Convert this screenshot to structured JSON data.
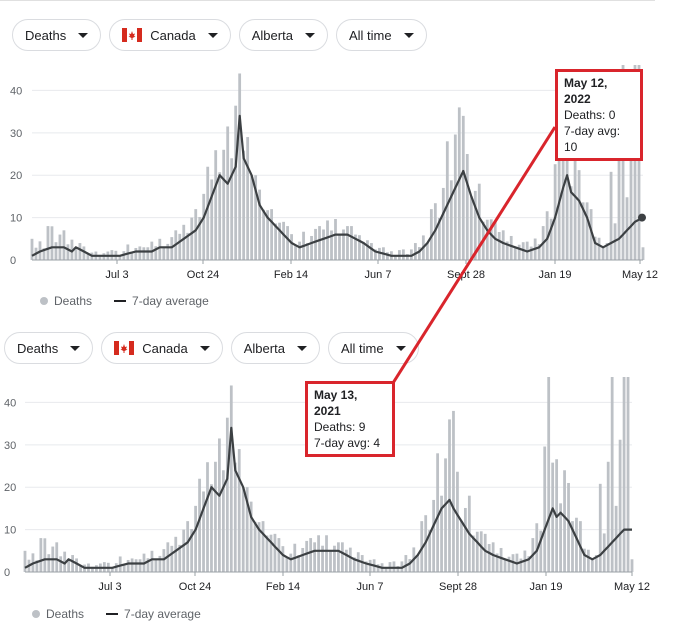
{
  "filters": {
    "metric": "Deaths",
    "country": "Canada",
    "region": "Alberta",
    "range": "All time"
  },
  "legend": {
    "bars": "Deaths",
    "line": "7-day average"
  },
  "tooltips": [
    {
      "title": "May 12, 2022",
      "deaths": "Deaths: 0",
      "avg": "7-day avg: 10"
    },
    {
      "title": "May 13, 2021",
      "deaths": "Deaths: 9",
      "avg": "7-day avg: 4"
    }
  ],
  "colors": {
    "bar": "#bdc1c6",
    "line": "#3c4043",
    "accent": "#d9252c",
    "grid": "#e8eaed"
  },
  "chart_data": [
    {
      "type": "bar",
      "series": [
        {
          "name": "Deaths",
          "type": "bar"
        },
        {
          "name": "7-day average",
          "type": "line"
        }
      ],
      "x_ticks": [
        "Jul 3",
        "Oct 24",
        "Feb 14",
        "Jun 7",
        "Sept 28",
        "Jan 19",
        "May 12"
      ],
      "y_ticks": [
        0,
        10,
        20,
        30,
        40
      ],
      "ylim": [
        0,
        46
      ],
      "avg": [
        [
          0,
          1
        ],
        [
          2,
          2
        ],
        [
          5,
          3
        ],
        [
          8,
          3
        ],
        [
          10,
          2
        ],
        [
          11,
          3
        ],
        [
          13,
          2
        ],
        [
          15,
          1
        ],
        [
          18,
          1
        ],
        [
          22,
          1
        ],
        [
          26,
          2
        ],
        [
          30,
          2
        ],
        [
          32,
          3
        ],
        [
          35,
          3
        ],
        [
          38,
          5
        ],
        [
          41,
          7
        ],
        [
          43,
          10
        ],
        [
          45,
          15
        ],
        [
          47,
          20
        ],
        [
          49,
          18
        ],
        [
          51,
          22
        ],
        [
          52,
          34
        ],
        [
          53,
          24
        ],
        [
          55,
          20
        ],
        [
          57,
          13
        ],
        [
          59,
          10
        ],
        [
          61,
          8
        ],
        [
          63,
          6
        ],
        [
          65,
          4
        ],
        [
          67,
          3
        ],
        [
          70,
          4
        ],
        [
          73,
          5
        ],
        [
          76,
          6
        ],
        [
          79,
          6
        ],
        [
          81,
          5
        ],
        [
          83,
          4
        ],
        [
          86,
          2
        ],
        [
          90,
          1
        ],
        [
          93,
          1
        ],
        [
          95,
          1
        ],
        [
          97,
          2
        ],
        [
          99,
          4
        ],
        [
          101,
          7
        ],
        [
          103,
          11
        ],
        [
          105,
          15
        ],
        [
          107,
          19
        ],
        [
          108,
          21
        ],
        [
          110,
          15
        ],
        [
          112,
          10
        ],
        [
          114,
          7
        ],
        [
          116,
          5
        ],
        [
          118,
          4
        ],
        [
          121,
          3
        ],
        [
          124,
          2
        ],
        [
          127,
          3
        ],
        [
          129,
          5
        ],
        [
          131,
          10
        ],
        [
          133,
          17
        ],
        [
          134,
          20
        ],
        [
          135,
          16
        ],
        [
          137,
          14
        ],
        [
          139,
          10
        ],
        [
          141,
          4
        ],
        [
          143,
          3
        ],
        [
          145,
          4
        ],
        [
          147,
          5
        ],
        [
          149,
          7
        ],
        [
          151,
          9
        ],
        [
          153,
          10
        ]
      ],
      "peaks": [
        [
          2,
          5
        ],
        [
          4,
          8
        ],
        [
          6,
          9
        ],
        [
          8,
          7
        ],
        [
          10,
          6
        ],
        [
          12,
          4
        ],
        [
          14,
          3
        ],
        [
          16,
          2
        ],
        [
          19,
          2
        ],
        [
          22,
          3
        ],
        [
          25,
          4
        ],
        [
          28,
          3
        ],
        [
          31,
          5
        ],
        [
          34,
          5
        ],
        [
          37,
          8
        ],
        [
          40,
          10
        ],
        [
          42,
          14
        ],
        [
          44,
          22
        ],
        [
          46,
          28
        ],
        [
          48,
          26
        ],
        [
          50,
          40
        ],
        [
          51,
          46
        ],
        [
          52,
          44
        ],
        [
          53,
          30
        ],
        [
          54,
          32
        ],
        [
          56,
          20
        ],
        [
          58,
          15
        ],
        [
          60,
          12
        ],
        [
          62,
          10
        ],
        [
          64,
          8
        ],
        [
          66,
          6
        ],
        [
          69,
          7
        ],
        [
          72,
          8
        ],
        [
          75,
          10
        ],
        [
          78,
          9
        ],
        [
          80,
          8
        ],
        [
          82,
          6
        ],
        [
          85,
          4
        ],
        [
          88,
          3
        ],
        [
          91,
          2
        ],
        [
          94,
          3
        ],
        [
          96,
          4
        ],
        [
          98,
          7
        ],
        [
          100,
          12
        ],
        [
          102,
          18
        ],
        [
          104,
          28
        ],
        [
          105,
          34
        ],
        [
          106,
          38
        ],
        [
          107,
          36
        ],
        [
          108,
          34
        ],
        [
          109,
          28
        ],
        [
          111,
          22
        ],
        [
          113,
          14
        ],
        [
          115,
          10
        ],
        [
          117,
          8
        ],
        [
          119,
          6
        ],
        [
          122,
          5
        ],
        [
          125,
          4
        ],
        [
          128,
          8
        ],
        [
          130,
          15
        ],
        [
          131,
          28
        ],
        [
          132,
          38
        ],
        [
          133,
          42
        ],
        [
          134,
          36
        ],
        [
          135,
          30
        ],
        [
          136,
          24
        ],
        [
          138,
          20
        ],
        [
          140,
          12
        ],
        [
          142,
          6
        ],
        [
          144,
          4
        ],
        [
          146,
          46
        ],
        [
          148,
          46
        ],
        [
          150,
          46
        ],
        [
          152,
          46
        ],
        [
          153,
          0
        ]
      ]
    },
    {
      "type": "bar",
      "series": [
        {
          "name": "Deaths",
          "type": "bar"
        },
        {
          "name": "7-day average",
          "type": "line"
        }
      ],
      "x_ticks": [
        "Jul 3",
        "Oct 24",
        "Feb 14",
        "Jun 7",
        "Sept 28",
        "Jan 19",
        "May 12"
      ],
      "y_ticks": [
        0,
        10,
        20,
        30,
        40
      ],
      "ylim": [
        0,
        46
      ],
      "avg": [
        [
          0,
          1
        ],
        [
          2,
          2
        ],
        [
          5,
          3
        ],
        [
          8,
          3
        ],
        [
          10,
          2
        ],
        [
          11,
          3
        ],
        [
          13,
          2
        ],
        [
          15,
          1
        ],
        [
          18,
          1
        ],
        [
          22,
          1
        ],
        [
          26,
          2
        ],
        [
          30,
          2
        ],
        [
          32,
          3
        ],
        [
          35,
          3
        ],
        [
          38,
          5
        ],
        [
          41,
          7
        ],
        [
          43,
          10
        ],
        [
          45,
          15
        ],
        [
          47,
          20
        ],
        [
          49,
          18
        ],
        [
          51,
          22
        ],
        [
          52,
          34
        ],
        [
          53,
          24
        ],
        [
          55,
          20
        ],
        [
          57,
          13
        ],
        [
          59,
          10
        ],
        [
          61,
          8
        ],
        [
          63,
          6
        ],
        [
          65,
          4
        ],
        [
          67,
          3
        ],
        [
          70,
          4
        ],
        [
          73,
          5
        ],
        [
          76,
          5
        ],
        [
          79,
          5
        ],
        [
          81,
          4
        ],
        [
          83,
          3
        ],
        [
          86,
          2
        ],
        [
          90,
          1
        ],
        [
          93,
          1
        ],
        [
          95,
          1
        ],
        [
          97,
          2
        ],
        [
          99,
          4
        ],
        [
          101,
          7
        ],
        [
          103,
          11
        ],
        [
          105,
          15
        ],
        [
          107,
          17
        ],
        [
          108,
          15
        ],
        [
          110,
          12
        ],
        [
          112,
          9
        ],
        [
          114,
          7
        ],
        [
          116,
          5
        ],
        [
          118,
          4
        ],
        [
          121,
          3
        ],
        [
          124,
          2
        ],
        [
          127,
          3
        ],
        [
          129,
          5
        ],
        [
          131,
          10
        ],
        [
          133,
          15
        ],
        [
          134,
          13
        ],
        [
          135,
          14
        ],
        [
          137,
          12
        ],
        [
          139,
          8
        ],
        [
          141,
          4
        ],
        [
          143,
          3
        ],
        [
          145,
          4
        ],
        [
          147,
          6
        ],
        [
          149,
          8
        ],
        [
          151,
          10
        ],
        [
          153,
          10
        ]
      ],
      "peaks": [
        [
          2,
          5
        ],
        [
          4,
          8
        ],
        [
          6,
          9
        ],
        [
          8,
          7
        ],
        [
          10,
          6
        ],
        [
          12,
          4
        ],
        [
          14,
          3
        ],
        [
          16,
          2
        ],
        [
          19,
          2
        ],
        [
          22,
          3
        ],
        [
          25,
          4
        ],
        [
          28,
          3
        ],
        [
          31,
          5
        ],
        [
          34,
          5
        ],
        [
          37,
          8
        ],
        [
          40,
          10
        ],
        [
          42,
          14
        ],
        [
          44,
          22
        ],
        [
          46,
          28
        ],
        [
          48,
          26
        ],
        [
          50,
          40
        ],
        [
          51,
          46
        ],
        [
          52,
          44
        ],
        [
          53,
          30
        ],
        [
          54,
          32
        ],
        [
          56,
          20
        ],
        [
          58,
          15
        ],
        [
          60,
          12
        ],
        [
          62,
          10
        ],
        [
          64,
          8
        ],
        [
          66,
          6
        ],
        [
          69,
          7
        ],
        [
          72,
          8
        ],
        [
          75,
          9
        ],
        [
          78,
          8
        ],
        [
          80,
          7
        ],
        [
          82,
          6
        ],
        [
          85,
          4
        ],
        [
          88,
          3
        ],
        [
          91,
          2
        ],
        [
          94,
          3
        ],
        [
          96,
          4
        ],
        [
          98,
          7
        ],
        [
          100,
          12
        ],
        [
          102,
          18
        ],
        [
          104,
          28
        ],
        [
          105,
          30
        ],
        [
          106,
          34
        ],
        [
          107,
          36
        ],
        [
          108,
          38
        ],
        [
          109,
          28
        ],
        [
          111,
          22
        ],
        [
          113,
          14
        ],
        [
          115,
          10
        ],
        [
          117,
          8
        ],
        [
          119,
          6
        ],
        [
          122,
          5
        ],
        [
          125,
          4
        ],
        [
          128,
          8
        ],
        [
          130,
          15
        ],
        [
          131,
          38
        ],
        [
          132,
          46
        ],
        [
          133,
          42
        ],
        [
          134,
          30
        ],
        [
          135,
          36
        ],
        [
          136,
          24
        ],
        [
          138,
          20
        ],
        [
          140,
          12
        ],
        [
          142,
          6
        ],
        [
          144,
          4
        ],
        [
          146,
          46
        ],
        [
          148,
          46
        ],
        [
          150,
          46
        ],
        [
          152,
          46
        ],
        [
          153,
          0
        ]
      ]
    }
  ]
}
